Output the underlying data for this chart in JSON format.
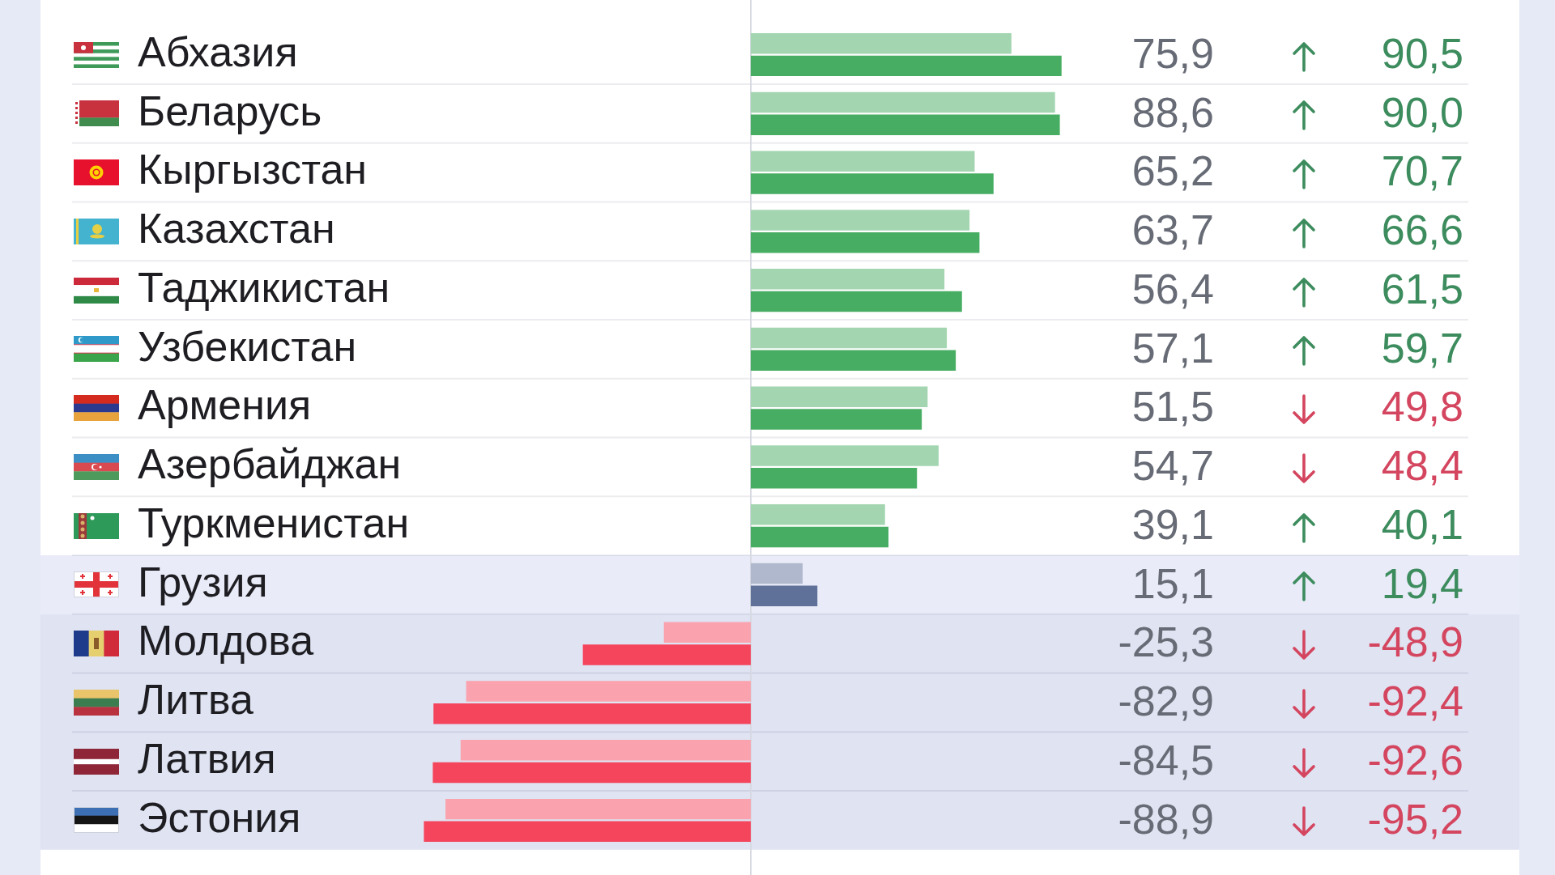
{
  "chart_data": {
    "type": "bar",
    "orientation": "horizontal",
    "categories": [
      "Абхазия",
      "Беларусь",
      "Кыргызстан",
      "Казахстан",
      "Таджикистан",
      "Узбекистан",
      "Армения",
      "Азербайджан",
      "Туркменистан",
      "Грузия",
      "Молдова",
      "Литва",
      "Латвия",
      "Эстония"
    ],
    "series": [
      {
        "colors": [
          "#a3d6b0",
          "#a3d6b0",
          "#a3d6b0",
          "#a3d6b0",
          "#a3d6b0",
          "#a3d6b0",
          "#a3d6b0",
          "#a3d6b0",
          "#a3d6b0",
          "#afb8cc",
          "#faa2ad",
          "#faa2ad",
          "#faa2ad",
          "#faa2ad"
        ],
        "values": [
          75.9,
          88.6,
          65.2,
          63.7,
          56.4,
          57.1,
          51.5,
          54.7,
          39.1,
          15.1,
          -25.3,
          -82.9,
          -84.5,
          -88.9
        ],
        "value_labels": [
          "75,9",
          "88,6",
          "65,2",
          "63,7",
          "56,4",
          "57,1",
          "51,5",
          "54,7",
          "39,1",
          "15,1",
          "-25,3",
          "-82,9",
          "-84,5",
          "-88,9"
        ]
      },
      {
        "colors": [
          "#47ad62",
          "#47ad62",
          "#47ad62",
          "#47ad62",
          "#47ad62",
          "#47ad62",
          "#47ad62",
          "#47ad62",
          "#47ad62",
          "#5f7199",
          "#f5455c",
          "#f5455c",
          "#f5455c",
          "#f5455c"
        ],
        "values": [
          90.5,
          90.0,
          70.7,
          66.6,
          61.5,
          59.7,
          49.8,
          48.4,
          40.1,
          19.4,
          -48.9,
          -92.4,
          -92.6,
          -95.2
        ],
        "value_labels": [
          "90,5",
          "90,0",
          "70,7",
          "66,6",
          "61,5",
          "59,7",
          "49,8",
          "48,4",
          "40,1",
          "19,4",
          "-48,9",
          "-92,4",
          "-92,6",
          "-95,2"
        ]
      }
    ],
    "grid": "y",
    "tick_labels": "y",
    "ref_lines": [
      {
        "axis": "x",
        "value": 0,
        "color": "#d6d9e1"
      }
    ],
    "bands": [
      {
        "axis": "y",
        "from": "Грузия",
        "to": "Грузия",
        "color": "#e9ebf8"
      },
      {
        "axis": "y",
        "from": "Молдова",
        "to": "Эстония",
        "color": "#dfe3f2"
      }
    ]
  }
}
